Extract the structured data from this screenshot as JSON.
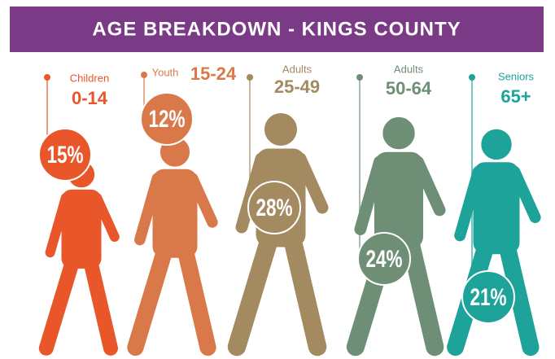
{
  "chart_data": {
    "type": "pictograph",
    "title": "AGE BREAKDOWN - KINGS COUNTY",
    "categories": [
      "Children",
      "Youth",
      "Adults",
      "Adults",
      "Seniors"
    ],
    "ranges": [
      "0-14",
      "15-24",
      "25-49",
      "50-64",
      "65+"
    ],
    "values": [
      15,
      12,
      28,
      24,
      21
    ],
    "value_labels": [
      "15%",
      "12%",
      "28%",
      "24%",
      "21%"
    ],
    "colors": [
      "#e8562a",
      "#d9794a",
      "#a38a60",
      "#6e8f76",
      "#1ea39b"
    ],
    "title_color": "#7b3a86"
  }
}
